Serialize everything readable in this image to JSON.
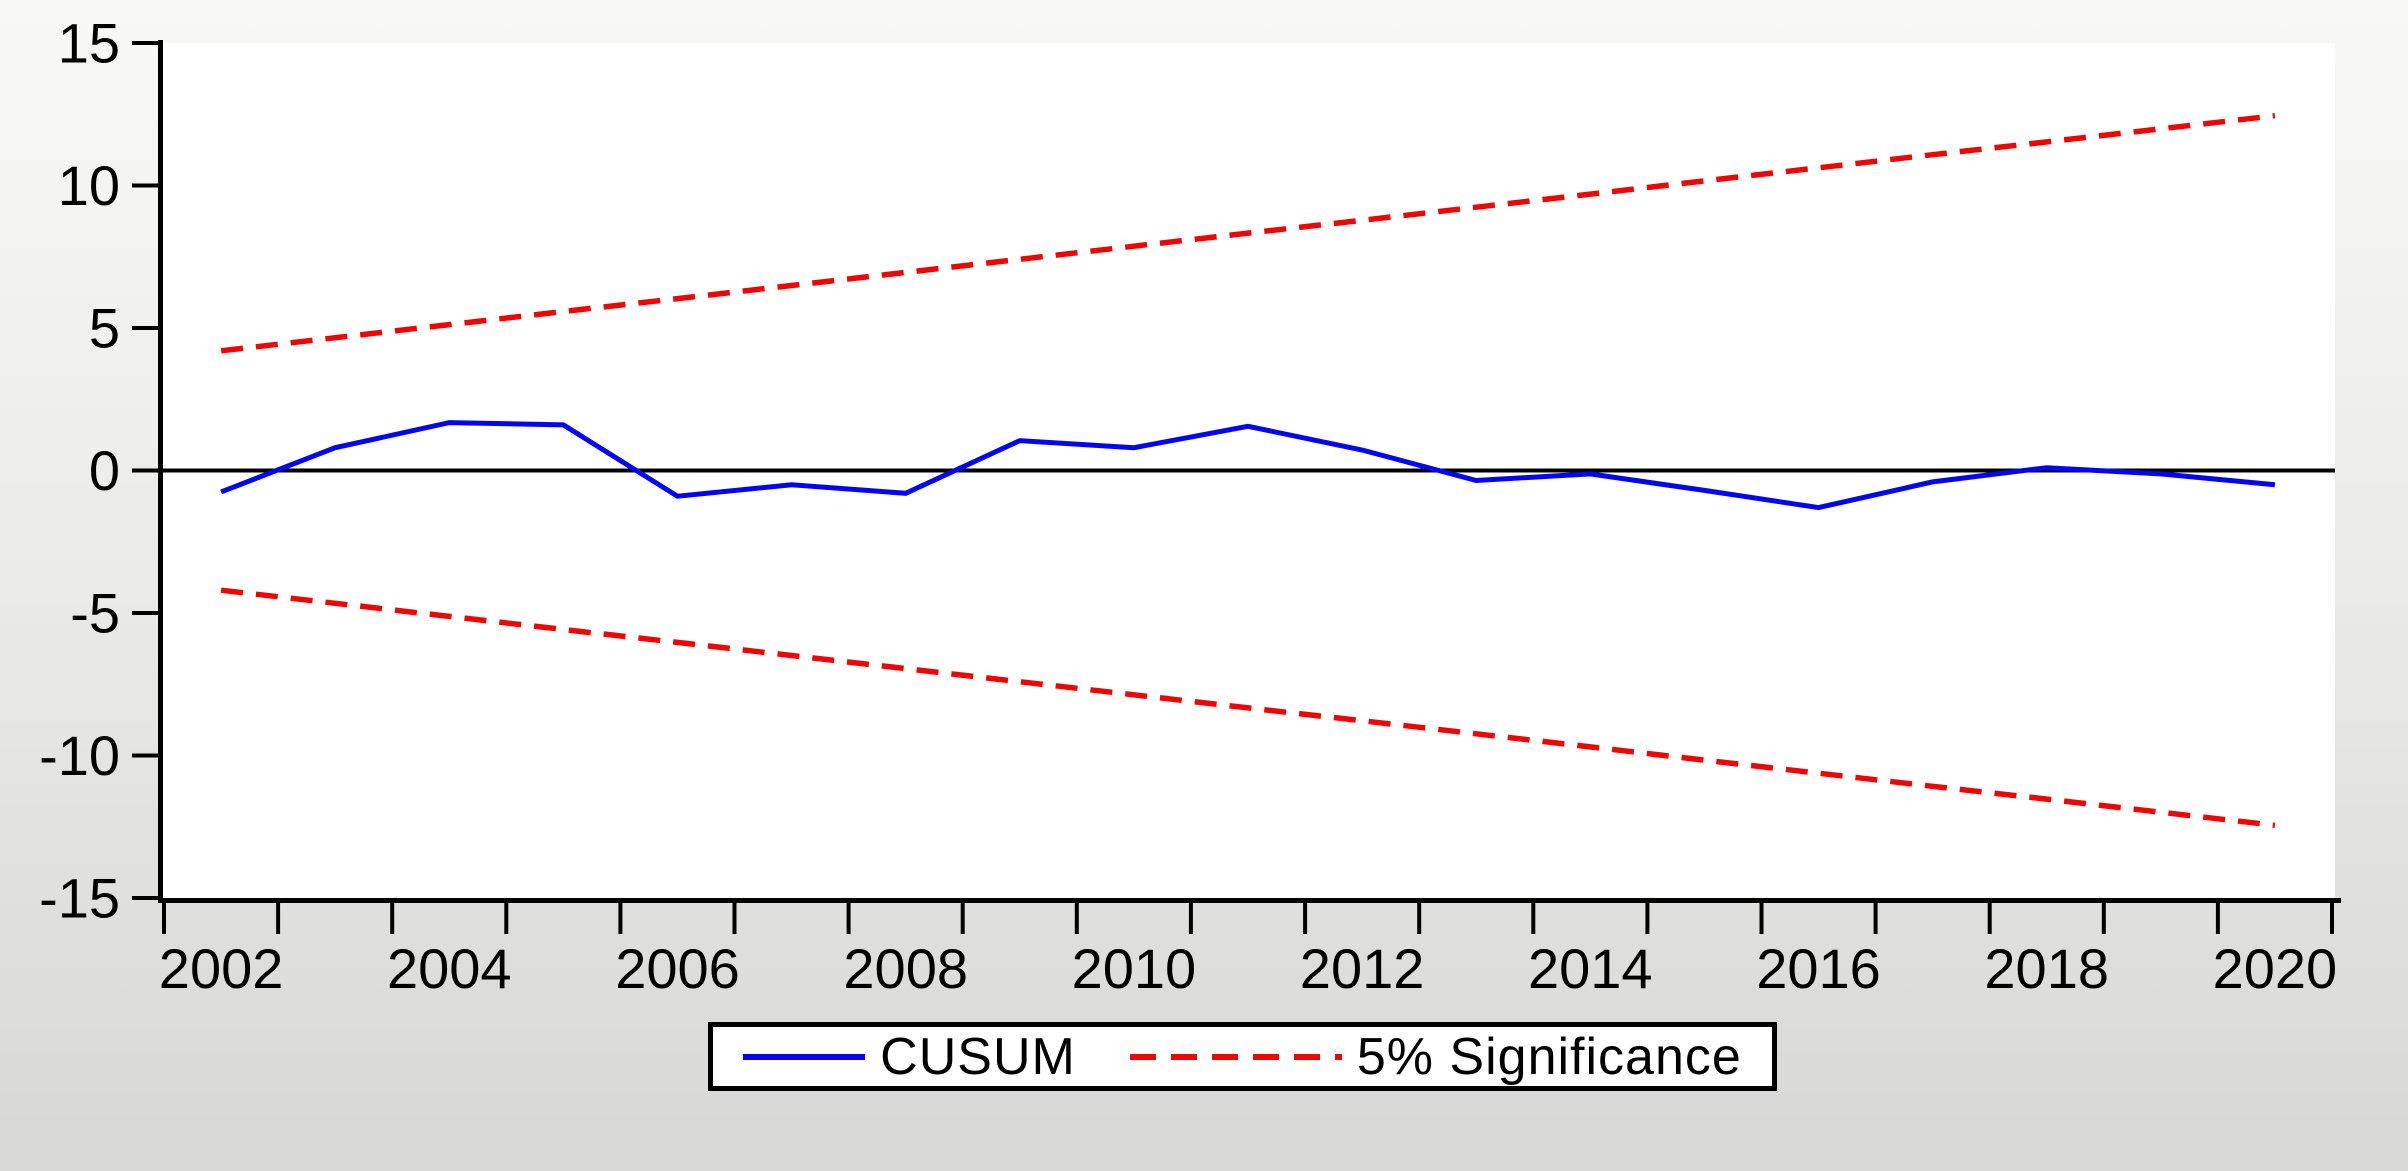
{
  "chart_data": {
    "type": "line",
    "title": "",
    "xlabel": "",
    "ylabel": "",
    "x": [
      2002,
      2003,
      2004,
      2005,
      2006,
      2007,
      2008,
      2009,
      2010,
      2011,
      2012,
      2013,
      2014,
      2015,
      2016,
      2017,
      2018,
      2019,
      2020
    ],
    "xtick_labels": [
      "2002",
      "2004",
      "2006",
      "2008",
      "2010",
      "2012",
      "2014",
      "2016",
      "2018",
      "2020"
    ],
    "yticks": [
      15,
      10,
      5,
      0,
      -5,
      -10,
      -15
    ],
    "ytick_labels": [
      "15",
      "10",
      "5",
      "0",
      "-5",
      "-10",
      "-15"
    ],
    "ylim": [
      -15,
      15
    ],
    "grid": false,
    "zero_line": true,
    "plot_background": "#ffffff",
    "axis_color": "#000000",
    "series": [
      {
        "name": "CUSUM",
        "color": "#0505f0",
        "line_style": "solid",
        "values": [
          -0.75,
          0.8,
          1.68,
          1.6,
          -0.9,
          -0.5,
          -0.8,
          1.05,
          0.8,
          1.55,
          0.72,
          -0.35,
          -0.12,
          -0.7,
          -1.3,
          -0.4,
          0.1,
          -0.12,
          -0.5
        ]
      },
      {
        "name": "5% Significance (upper bound)",
        "color": "#f00505",
        "line_style": "dashed",
        "values": [
          4.2,
          4.66,
          5.12,
          5.58,
          6.03,
          6.49,
          6.95,
          7.41,
          7.87,
          8.33,
          8.78,
          9.24,
          9.7,
          10.16,
          10.62,
          11.08,
          11.53,
          11.99,
          12.45
        ]
      },
      {
        "name": "5% Significance (lower bound)",
        "color": "#f00505",
        "line_style": "dashed",
        "values": [
          -4.2,
          -4.66,
          -5.12,
          -5.58,
          -6.03,
          -6.49,
          -6.95,
          -7.41,
          -7.87,
          -8.33,
          -8.78,
          -9.24,
          -9.7,
          -10.16,
          -10.62,
          -11.08,
          -11.53,
          -11.99,
          -12.45
        ]
      }
    ],
    "legend": {
      "position": "bottom-center",
      "border": true,
      "entries": [
        {
          "label": "CUSUM",
          "color": "#0505f0",
          "line_style": "solid"
        },
        {
          "label": "5% Significance",
          "color": "#f00505",
          "line_style": "dashed"
        }
      ]
    }
  }
}
